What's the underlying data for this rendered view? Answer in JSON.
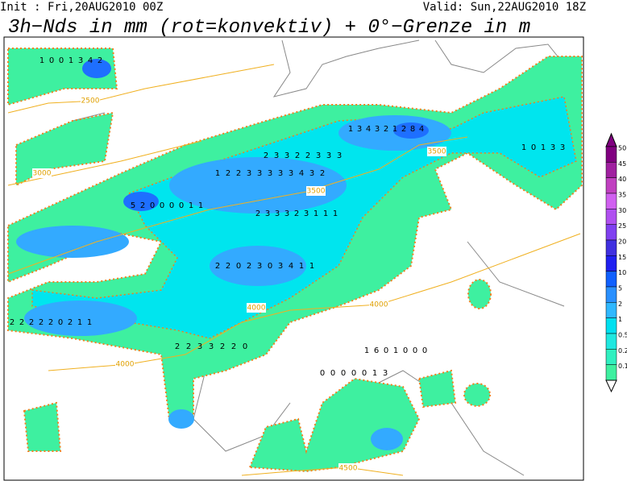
{
  "header": {
    "init": "Init : Fri,20AUG2010 00Z",
    "valid": "Valid: Sun,22AUG2010 18Z",
    "title": "3h−Nds in mm (rot=konvektiv) + 0°−Grenze in m"
  },
  "legend": {
    "levels": [
      50,
      45,
      40,
      35,
      30,
      25,
      20,
      15,
      10,
      5,
      2,
      1,
      0.5,
      0.2,
      0.1
    ],
    "colors": [
      "#800080",
      "#a020a0",
      "#c040c0",
      "#d060f0",
      "#b050f0",
      "#8040f0",
      "#4030e0",
      "#2020f0",
      "#1060ff",
      "#2a90ff",
      "#30b8ff",
      "#00e0f0",
      "#20e8e0",
      "#30f0c0",
      "#3ef0a0"
    ]
  },
  "contour_labels": [
    2500,
    3000,
    3500,
    3500,
    4000,
    4000,
    4000,
    4500
  ],
  "grid_rows": [
    [
      1,
      0,
      0,
      1,
      3,
      4,
      2
    ],
    [
      1,
      2,
      2,
      3,
      3,
      3,
      3,
      3,
      4,
      3,
      2
    ],
    [
      2,
      3,
      3,
      2,
      2,
      3,
      3,
      3
    ],
    [
      1,
      3,
      4,
      3,
      2,
      1,
      2,
      8,
      4
    ],
    [
      2,
      3,
      3,
      3,
      2,
      3,
      1,
      1,
      1
    ],
    [
      2,
      2,
      0,
      2,
      3,
      0,
      3,
      4,
      1,
      1
    ],
    [
      2,
      2,
      2,
      2,
      2,
      0,
      2,
      1,
      1
    ],
    [
      2,
      2,
      3,
      3,
      2,
      2,
      0
    ],
    [
      1,
      0,
      1,
      3,
      3
    ],
    [
      5,
      2,
      0,
      0,
      0,
      0,
      1,
      1
    ],
    [
      1,
      6,
      0,
      1,
      0,
      0,
      0
    ],
    [
      0,
      0,
      0,
      0,
      0,
      1,
      3
    ]
  ]
}
